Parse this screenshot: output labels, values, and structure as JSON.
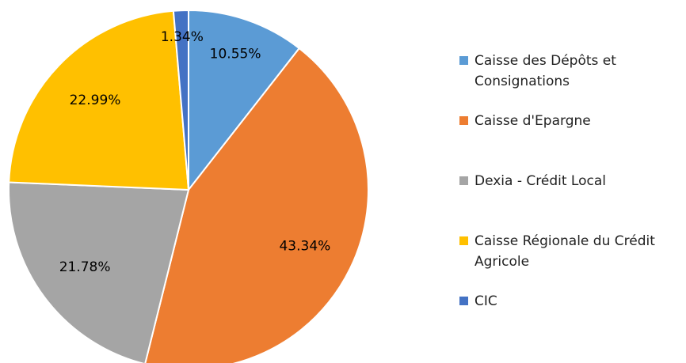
{
  "chart_data": {
    "type": "pie",
    "categories": [
      "Caisse des Dépôts et Consignations",
      "Caisse d'Epargne",
      "Dexia - Crédit Local",
      "Caisse Régionale du Crédit Agricole",
      "CIC"
    ],
    "values": [
      10.55,
      43.34,
      21.78,
      22.99,
      1.34
    ],
    "value_labels": [
      "10.55%",
      "43.34%",
      "21.78%",
      "22.99%",
      "1.34%"
    ],
    "colors": [
      "#5b9bd5",
      "#ed7d31",
      "#a5a5a5",
      "#ffc000",
      "#4472c4"
    ]
  }
}
